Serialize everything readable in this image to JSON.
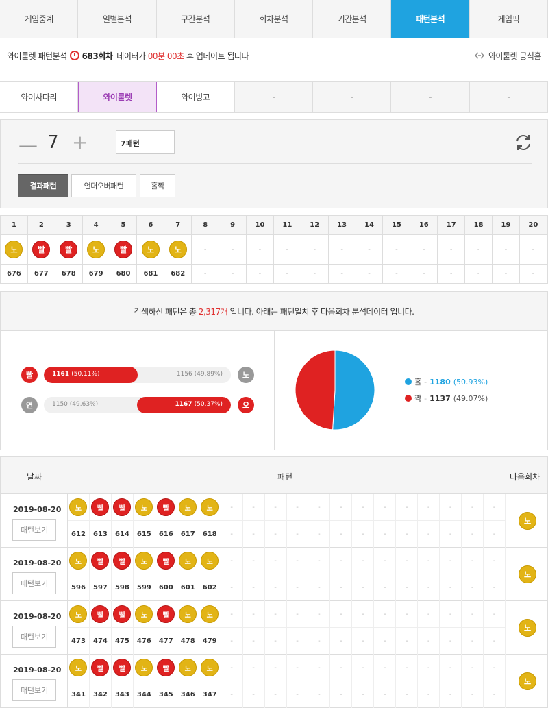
{
  "topnav": [
    "게임중계",
    "일별분석",
    "구간분석",
    "회차분석",
    "기간분석",
    "패턴분석",
    "게임픽"
  ],
  "topnav_active": 5,
  "info": {
    "label": "와이룰렛 패턴분석",
    "round": "683회차",
    "text1": "데이터가",
    "time": "00분 00초",
    "text2": "후 업데이트 됩니다",
    "official": "와이룰렛 공식홈"
  },
  "subnav": [
    "와이사다리",
    "와이룰렛",
    "와이빙고",
    "-",
    "-",
    "-",
    "-"
  ],
  "subnav_active": 1,
  "control": {
    "minus": "—",
    "count": "7",
    "plus": "+",
    "select_value": "7패턴",
    "buttons": [
      "결과패턴",
      "언더오버패턴",
      "홀짝"
    ],
    "active_button": 0
  },
  "pattern_table": {
    "headers": [
      "1",
      "2",
      "3",
      "4",
      "5",
      "6",
      "7",
      "8",
      "9",
      "10",
      "11",
      "12",
      "13",
      "14",
      "15",
      "16",
      "17",
      "18",
      "19",
      "20"
    ],
    "balls": [
      "노",
      "빨",
      "빨",
      "노",
      "빨",
      "노",
      "노",
      "-",
      "-",
      "-",
      "-",
      "-",
      "-",
      "-",
      "-",
      "-",
      "-",
      "-",
      "-",
      "-"
    ],
    "rounds": [
      "676",
      "677",
      "678",
      "679",
      "680",
      "681",
      "682",
      "-",
      "-",
      "-",
      "-",
      "-",
      "-",
      "-",
      "-",
      "-",
      "-",
      "-",
      "-",
      "-"
    ]
  },
  "stats": {
    "head_pre": "검색하신 패턴은 총",
    "head_count": "2,317개",
    "head_post": "입니다. 아래는 패턴일치 후 다음회차 분석데이터 입니다.",
    "bar1": {
      "left_ball": "빨",
      "left_val": "1161",
      "left_pct": "(50.11%)",
      "right_val": "1156",
      "right_pct": "(49.89%)",
      "right_ball": "노",
      "fill": 0.5011
    },
    "bar2": {
      "left_ball": "연",
      "left_val": "1150",
      "left_pct": "(49.63%)",
      "right_val": "1167",
      "right_pct": "(50.37%)",
      "right_ball": "오",
      "fill": 0.5037
    },
    "pie": {
      "odd_label": "홀",
      "odd_val": "1180",
      "odd_pct": "(50.93%)",
      "even_label": "짝",
      "even_val": "1137",
      "even_pct": "(49.07%)",
      "odd_color": "#1fa3e0",
      "even_color": "#df2222",
      "odd_fraction": 0.5093
    },
    "dash": "-"
  },
  "results": {
    "headers": {
      "date": "날짜",
      "pattern": "패턴",
      "next": "다음회차"
    },
    "view_label": "패턴보기",
    "rows": [
      {
        "date": "2019-08-20",
        "balls": [
          "노",
          "빨",
          "빨",
          "노",
          "빨",
          "노",
          "노"
        ],
        "rounds": [
          "612",
          "613",
          "614",
          "615",
          "616",
          "617",
          "618"
        ],
        "next": "노"
      },
      {
        "date": "2019-08-20",
        "balls": [
          "노",
          "빨",
          "빨",
          "노",
          "빨",
          "노",
          "노"
        ],
        "rounds": [
          "596",
          "597",
          "598",
          "599",
          "600",
          "601",
          "602"
        ],
        "next": "노"
      },
      {
        "date": "2019-08-20",
        "balls": [
          "노",
          "빨",
          "빨",
          "노",
          "빨",
          "노",
          "노"
        ],
        "rounds": [
          "473",
          "474",
          "475",
          "476",
          "477",
          "478",
          "479"
        ],
        "next": "노"
      },
      {
        "date": "2019-08-20",
        "balls": [
          "노",
          "빨",
          "빨",
          "노",
          "빨",
          "노",
          "노"
        ],
        "rounds": [
          "341",
          "342",
          "343",
          "344",
          "345",
          "346",
          "347"
        ],
        "next": "노"
      }
    ],
    "dash": "-"
  }
}
